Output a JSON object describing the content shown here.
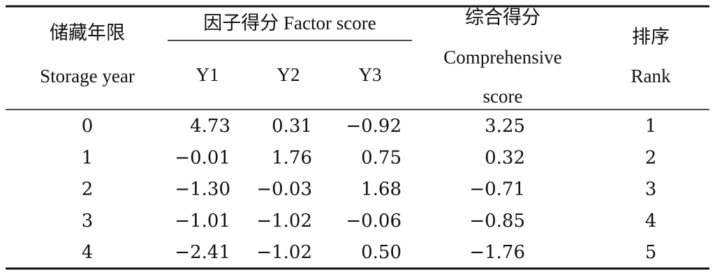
{
  "header": {
    "storage_year": [
      "储藏年限",
      "Storage year"
    ],
    "factor_score": "因子得分 Factor score",
    "factors": [
      "Y1",
      "Y2",
      "Y3"
    ],
    "comprehensive": [
      "综合得分",
      "Comprehensive",
      "score"
    ],
    "rank": [
      "排序",
      "Rank"
    ]
  },
  "table": {
    "rows": [
      [
        "0",
        "4.73",
        "0.31",
        "−0.92",
        "3.25",
        "1"
      ],
      [
        "1",
        "−0.01",
        "1.76",
        "0.75",
        "0.32",
        "2"
      ],
      [
        "2",
        "−1.30",
        "−0.03",
        "1.68",
        "−0.71",
        "3"
      ],
      [
        "3",
        "−1.01",
        "−1.02",
        "−0.06",
        "−0.85",
        "4"
      ],
      [
        "4",
        "−2.41",
        "−1.02",
        "0.50",
        "−1.76",
        "5"
      ]
    ]
  }
}
